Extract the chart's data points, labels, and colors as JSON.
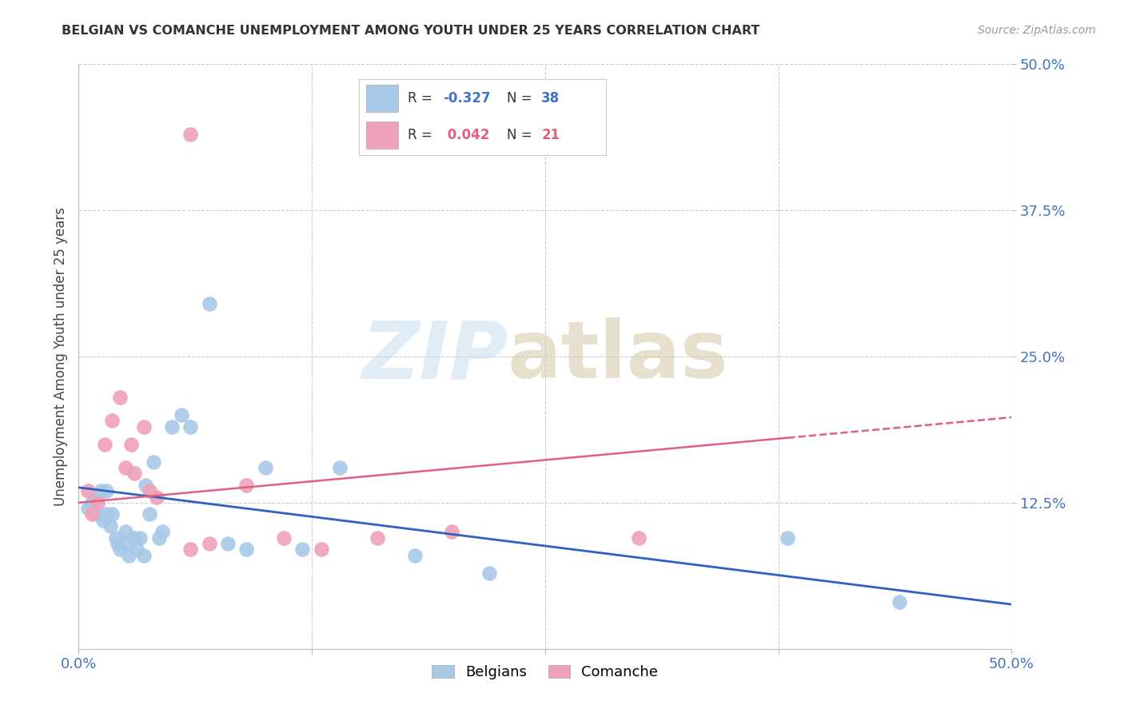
{
  "title": "BELGIAN VS COMANCHE UNEMPLOYMENT AMONG YOUTH UNDER 25 YEARS CORRELATION CHART",
  "source": "Source: ZipAtlas.com",
  "ylabel": "Unemployment Among Youth under 25 years",
  "xlim": [
    0.0,
    0.5
  ],
  "ylim": [
    0.0,
    0.5
  ],
  "xticks": [
    0.0,
    0.125,
    0.25,
    0.375,
    0.5
  ],
  "xticklabels": [
    "0.0%",
    "",
    "",
    "",
    "50.0%"
  ],
  "yticks": [
    0.125,
    0.25,
    0.375,
    0.5
  ],
  "yticklabels": [
    "12.5%",
    "25.0%",
    "37.5%",
    "50.0%"
  ],
  "belgians_color": "#a8c8e8",
  "comanche_color": "#f0a0b8",
  "belgian_line_color": "#3060c0",
  "comanche_line_color": "#e06080",
  "R_belgian": -0.327,
  "N_belgian": 38,
  "R_comanche": 0.042,
  "N_comanche": 21,
  "belgians_x": [
    0.005,
    0.007,
    0.01,
    0.01,
    0.012,
    0.013,
    0.015,
    0.015,
    0.017,
    0.018,
    0.02,
    0.021,
    0.022,
    0.025,
    0.026,
    0.027,
    0.03,
    0.031,
    0.033,
    0.035,
    0.036,
    0.038,
    0.04,
    0.043,
    0.045,
    0.05,
    0.055,
    0.06,
    0.07,
    0.08,
    0.09,
    0.1,
    0.12,
    0.14,
    0.18,
    0.22,
    0.38,
    0.44
  ],
  "belgians_y": [
    0.12,
    0.125,
    0.115,
    0.13,
    0.135,
    0.11,
    0.135,
    0.115,
    0.105,
    0.115,
    0.095,
    0.09,
    0.085,
    0.1,
    0.09,
    0.08,
    0.095,
    0.085,
    0.095,
    0.08,
    0.14,
    0.115,
    0.16,
    0.095,
    0.1,
    0.19,
    0.2,
    0.19,
    0.295,
    0.09,
    0.085,
    0.155,
    0.085,
    0.155,
    0.08,
    0.065,
    0.095,
    0.04
  ],
  "comanche_x": [
    0.005,
    0.007,
    0.01,
    0.014,
    0.018,
    0.022,
    0.025,
    0.028,
    0.03,
    0.035,
    0.038,
    0.042,
    0.06,
    0.07,
    0.09,
    0.11,
    0.13,
    0.16,
    0.2,
    0.3,
    0.06
  ],
  "comanche_y": [
    0.135,
    0.115,
    0.125,
    0.175,
    0.195,
    0.215,
    0.155,
    0.175,
    0.15,
    0.19,
    0.135,
    0.13,
    0.085,
    0.09,
    0.14,
    0.095,
    0.085,
    0.095,
    0.1,
    0.095,
    0.44
  ],
  "belgian_line_x": [
    0.0,
    0.5
  ],
  "belgian_line_y": [
    0.138,
    0.038
  ],
  "comanche_line_x": [
    0.0,
    0.5
  ],
  "comanche_line_y": [
    0.125,
    0.198
  ]
}
